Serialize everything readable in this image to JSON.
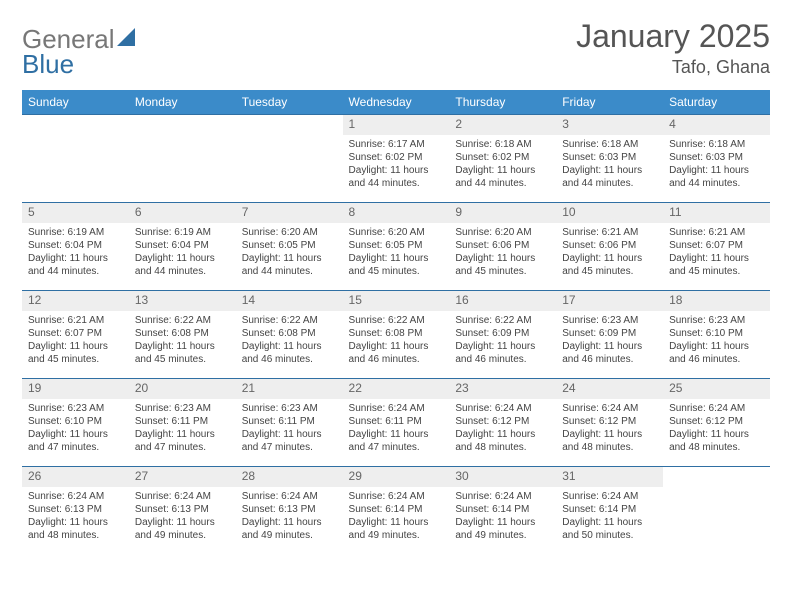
{
  "brand": {
    "word1": "General",
    "word2": "Blue",
    "color_gray": "#777777",
    "color_blue": "#2f6fa3"
  },
  "title": {
    "month": "January 2025",
    "location": "Tafo, Ghana"
  },
  "styling": {
    "header_bg": "#3b8bc9",
    "header_fg": "#ffffff",
    "daynum_bg": "#eeeeee",
    "row_border": "#2f6fa3",
    "body_fontsize": 10,
    "month_fontsize": 32,
    "location_fontsize": 18
  },
  "weekdays": [
    "Sunday",
    "Monday",
    "Tuesday",
    "Wednesday",
    "Thursday",
    "Friday",
    "Saturday"
  ],
  "weeks": [
    [
      {
        "n": "",
        "sr": "",
        "ss": "",
        "dl": ""
      },
      {
        "n": "",
        "sr": "",
        "ss": "",
        "dl": ""
      },
      {
        "n": "",
        "sr": "",
        "ss": "",
        "dl": ""
      },
      {
        "n": "1",
        "sr": "Sunrise: 6:17 AM",
        "ss": "Sunset: 6:02 PM",
        "dl": "Daylight: 11 hours and 44 minutes."
      },
      {
        "n": "2",
        "sr": "Sunrise: 6:18 AM",
        "ss": "Sunset: 6:02 PM",
        "dl": "Daylight: 11 hours and 44 minutes."
      },
      {
        "n": "3",
        "sr": "Sunrise: 6:18 AM",
        "ss": "Sunset: 6:03 PM",
        "dl": "Daylight: 11 hours and 44 minutes."
      },
      {
        "n": "4",
        "sr": "Sunrise: 6:18 AM",
        "ss": "Sunset: 6:03 PM",
        "dl": "Daylight: 11 hours and 44 minutes."
      }
    ],
    [
      {
        "n": "5",
        "sr": "Sunrise: 6:19 AM",
        "ss": "Sunset: 6:04 PM",
        "dl": "Daylight: 11 hours and 44 minutes."
      },
      {
        "n": "6",
        "sr": "Sunrise: 6:19 AM",
        "ss": "Sunset: 6:04 PM",
        "dl": "Daylight: 11 hours and 44 minutes."
      },
      {
        "n": "7",
        "sr": "Sunrise: 6:20 AM",
        "ss": "Sunset: 6:05 PM",
        "dl": "Daylight: 11 hours and 44 minutes."
      },
      {
        "n": "8",
        "sr": "Sunrise: 6:20 AM",
        "ss": "Sunset: 6:05 PM",
        "dl": "Daylight: 11 hours and 45 minutes."
      },
      {
        "n": "9",
        "sr": "Sunrise: 6:20 AM",
        "ss": "Sunset: 6:06 PM",
        "dl": "Daylight: 11 hours and 45 minutes."
      },
      {
        "n": "10",
        "sr": "Sunrise: 6:21 AM",
        "ss": "Sunset: 6:06 PM",
        "dl": "Daylight: 11 hours and 45 minutes."
      },
      {
        "n": "11",
        "sr": "Sunrise: 6:21 AM",
        "ss": "Sunset: 6:07 PM",
        "dl": "Daylight: 11 hours and 45 minutes."
      }
    ],
    [
      {
        "n": "12",
        "sr": "Sunrise: 6:21 AM",
        "ss": "Sunset: 6:07 PM",
        "dl": "Daylight: 11 hours and 45 minutes."
      },
      {
        "n": "13",
        "sr": "Sunrise: 6:22 AM",
        "ss": "Sunset: 6:08 PM",
        "dl": "Daylight: 11 hours and 45 minutes."
      },
      {
        "n": "14",
        "sr": "Sunrise: 6:22 AM",
        "ss": "Sunset: 6:08 PM",
        "dl": "Daylight: 11 hours and 46 minutes."
      },
      {
        "n": "15",
        "sr": "Sunrise: 6:22 AM",
        "ss": "Sunset: 6:08 PM",
        "dl": "Daylight: 11 hours and 46 minutes."
      },
      {
        "n": "16",
        "sr": "Sunrise: 6:22 AM",
        "ss": "Sunset: 6:09 PM",
        "dl": "Daylight: 11 hours and 46 minutes."
      },
      {
        "n": "17",
        "sr": "Sunrise: 6:23 AM",
        "ss": "Sunset: 6:09 PM",
        "dl": "Daylight: 11 hours and 46 minutes."
      },
      {
        "n": "18",
        "sr": "Sunrise: 6:23 AM",
        "ss": "Sunset: 6:10 PM",
        "dl": "Daylight: 11 hours and 46 minutes."
      }
    ],
    [
      {
        "n": "19",
        "sr": "Sunrise: 6:23 AM",
        "ss": "Sunset: 6:10 PM",
        "dl": "Daylight: 11 hours and 47 minutes."
      },
      {
        "n": "20",
        "sr": "Sunrise: 6:23 AM",
        "ss": "Sunset: 6:11 PM",
        "dl": "Daylight: 11 hours and 47 minutes."
      },
      {
        "n": "21",
        "sr": "Sunrise: 6:23 AM",
        "ss": "Sunset: 6:11 PM",
        "dl": "Daylight: 11 hours and 47 minutes."
      },
      {
        "n": "22",
        "sr": "Sunrise: 6:24 AM",
        "ss": "Sunset: 6:11 PM",
        "dl": "Daylight: 11 hours and 47 minutes."
      },
      {
        "n": "23",
        "sr": "Sunrise: 6:24 AM",
        "ss": "Sunset: 6:12 PM",
        "dl": "Daylight: 11 hours and 48 minutes."
      },
      {
        "n": "24",
        "sr": "Sunrise: 6:24 AM",
        "ss": "Sunset: 6:12 PM",
        "dl": "Daylight: 11 hours and 48 minutes."
      },
      {
        "n": "25",
        "sr": "Sunrise: 6:24 AM",
        "ss": "Sunset: 6:12 PM",
        "dl": "Daylight: 11 hours and 48 minutes."
      }
    ],
    [
      {
        "n": "26",
        "sr": "Sunrise: 6:24 AM",
        "ss": "Sunset: 6:13 PM",
        "dl": "Daylight: 11 hours and 48 minutes."
      },
      {
        "n": "27",
        "sr": "Sunrise: 6:24 AM",
        "ss": "Sunset: 6:13 PM",
        "dl": "Daylight: 11 hours and 49 minutes."
      },
      {
        "n": "28",
        "sr": "Sunrise: 6:24 AM",
        "ss": "Sunset: 6:13 PM",
        "dl": "Daylight: 11 hours and 49 minutes."
      },
      {
        "n": "29",
        "sr": "Sunrise: 6:24 AM",
        "ss": "Sunset: 6:14 PM",
        "dl": "Daylight: 11 hours and 49 minutes."
      },
      {
        "n": "30",
        "sr": "Sunrise: 6:24 AM",
        "ss": "Sunset: 6:14 PM",
        "dl": "Daylight: 11 hours and 49 minutes."
      },
      {
        "n": "31",
        "sr": "Sunrise: 6:24 AM",
        "ss": "Sunset: 6:14 PM",
        "dl": "Daylight: 11 hours and 50 minutes."
      },
      {
        "n": "",
        "sr": "",
        "ss": "",
        "dl": ""
      }
    ]
  ]
}
